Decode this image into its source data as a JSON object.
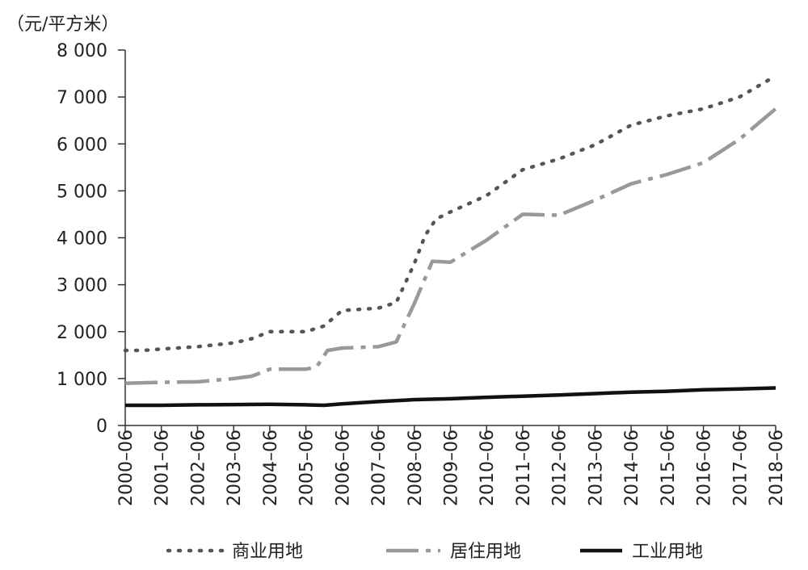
{
  "chart_data": {
    "type": "line",
    "unit_label": "（元/平方米）",
    "ylim": [
      0,
      8000
    ],
    "y_ticks": [
      0,
      1000,
      2000,
      3000,
      4000,
      5000,
      6000,
      7000,
      8000
    ],
    "y_tick_labels": [
      "0",
      "1 000",
      "2 000",
      "3 000",
      "4 000",
      "5 000",
      "6 000",
      "7 000",
      "8 000"
    ],
    "categories": [
      "2000–06",
      "2001–06",
      "2002–06",
      "2003–06",
      "2004–06",
      "2005–06",
      "2006–06",
      "2007–06",
      "2008–06",
      "2009–06",
      "2010–06",
      "2011–06",
      "2012–06",
      "2013–06",
      "2014–06",
      "2015–06",
      "2016–06",
      "2017–06",
      "2018–06"
    ],
    "x_range": [
      0,
      18
    ],
    "legend_position": "bottom",
    "series": [
      {
        "name": "商业用地",
        "style": "dotted",
        "color": "#555555",
        "points": [
          [
            0,
            1600
          ],
          [
            0.5,
            1600
          ],
          [
            1,
            1630
          ],
          [
            2,
            1680
          ],
          [
            3,
            1760
          ],
          [
            3.5,
            1850
          ],
          [
            4,
            2000
          ],
          [
            5,
            2000
          ],
          [
            5.5,
            2120
          ],
          [
            6,
            2450
          ],
          [
            7,
            2500
          ],
          [
            7.5,
            2620
          ],
          [
            8,
            3450
          ],
          [
            8.3,
            4050
          ],
          [
            8.6,
            4400
          ],
          [
            9,
            4550
          ],
          [
            10,
            4900
          ],
          [
            11,
            5450
          ],
          [
            12,
            5680
          ],
          [
            13,
            5980
          ],
          [
            14,
            6400
          ],
          [
            15,
            6600
          ],
          [
            16,
            6750
          ],
          [
            17,
            7000
          ],
          [
            18,
            7450
          ]
        ]
      },
      {
        "name": "居住用地",
        "style": "dash-dot",
        "color": "#999999",
        "points": [
          [
            0,
            900
          ],
          [
            1,
            920
          ],
          [
            2,
            930
          ],
          [
            3,
            1000
          ],
          [
            3.5,
            1050
          ],
          [
            4,
            1200
          ],
          [
            5,
            1200
          ],
          [
            5.3,
            1250
          ],
          [
            5.6,
            1600
          ],
          [
            6,
            1650
          ],
          [
            7,
            1680
          ],
          [
            7.5,
            1780
          ],
          [
            8,
            2600
          ],
          [
            8.5,
            3500
          ],
          [
            9,
            3480
          ],
          [
            10,
            3950
          ],
          [
            11,
            4500
          ],
          [
            12,
            4480
          ],
          [
            13,
            4800
          ],
          [
            14,
            5150
          ],
          [
            15,
            5350
          ],
          [
            16,
            5600
          ],
          [
            17,
            6100
          ],
          [
            18,
            6750
          ]
        ]
      },
      {
        "name": "工业用地",
        "style": "solid",
        "color": "#111111",
        "points": [
          [
            0,
            430
          ],
          [
            1,
            430
          ],
          [
            2,
            440
          ],
          [
            3,
            445
          ],
          [
            4,
            450
          ],
          [
            5,
            440
          ],
          [
            5.5,
            430
          ],
          [
            6,
            460
          ],
          [
            7,
            510
          ],
          [
            8,
            550
          ],
          [
            9,
            570
          ],
          [
            10,
            600
          ],
          [
            11,
            625
          ],
          [
            12,
            650
          ],
          [
            13,
            680
          ],
          [
            14,
            710
          ],
          [
            15,
            730
          ],
          [
            16,
            760
          ],
          [
            17,
            780
          ],
          [
            18,
            800
          ]
        ]
      }
    ]
  }
}
